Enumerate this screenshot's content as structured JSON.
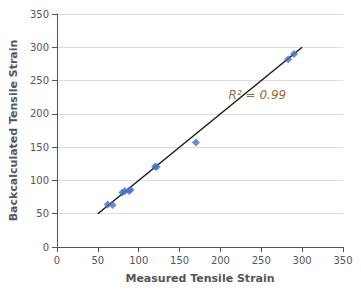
{
  "chart_data": {
    "type": "scatter",
    "xlabel": "Measured Tensile Strain",
    "ylabel": "Backcalculated Tensile Strain",
    "series": [
      {
        "type": "line",
        "color": "#1a1a1a",
        "x": [
          50,
          300
        ],
        "values": [
          50,
          300
        ]
      },
      {
        "type": "scatter",
        "color": "#4472C4",
        "marker": "diamond",
        "x": [
          62,
          68,
          80,
          83,
          88,
          90,
          120,
          122,
          170,
          283,
          290
        ],
        "values": [
          64,
          63,
          82,
          84,
          84,
          86,
          121,
          120,
          157,
          282,
          290
        ]
      }
    ],
    "annotations": [
      {
        "text": "R² = 0.99",
        "x": 210,
        "y": 228,
        "color": "#7B3F00"
      }
    ],
    "xlim": [
      0,
      350
    ],
    "ylim": [
      0,
      350
    ],
    "xticks": [
      0,
      50,
      100,
      150,
      200,
      250,
      300,
      350
    ],
    "yticks": [
      0,
      50,
      100,
      150,
      200,
      250,
      300,
      350
    ],
    "grid": true
  }
}
